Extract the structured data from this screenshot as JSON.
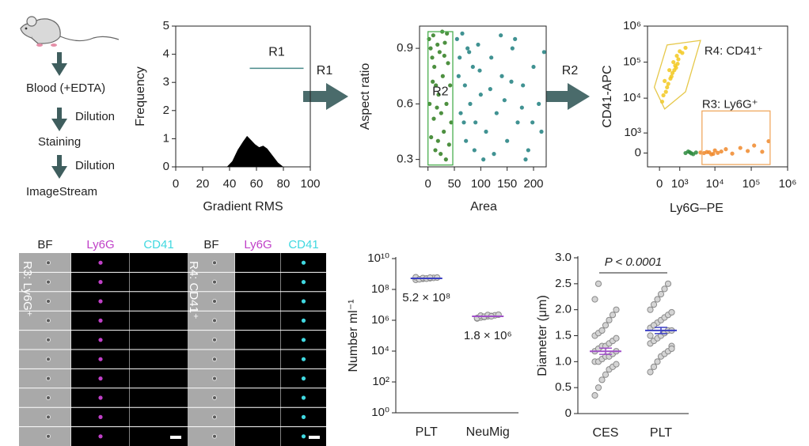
{
  "workflow": {
    "steps": [
      "Blood (+EDTA)",
      "Staining",
      "ImageStream"
    ],
    "arrows": [
      "Dilution",
      "Dilution"
    ]
  },
  "gate_arrows": [
    "R1",
    "R2"
  ],
  "chart_data": [
    {
      "type": "area",
      "xlabel": "Gradient RMS",
      "ylabel": "Frequency",
      "color": "#000000",
      "x": [
        38,
        42,
        46,
        50,
        53,
        56,
        59,
        62,
        65,
        68,
        72,
        76,
        80
      ],
      "y": [
        0,
        0.2,
        0.6,
        0.9,
        1.1,
        0.95,
        0.8,
        0.7,
        0.75,
        0.65,
        0.4,
        0.15,
        0
      ],
      "xlim": [
        0,
        100
      ],
      "xticks": [
        0,
        20,
        40,
        60,
        80,
        100
      ],
      "ylim": [
        0,
        5
      ],
      "yticks": [
        0,
        1,
        2,
        3,
        4,
        5
      ],
      "gates": [
        {
          "name": "R1",
          "x": [
            55,
            95
          ],
          "y": 3.5,
          "color": "#4a8a8a"
        }
      ]
    },
    {
      "type": "scatter",
      "xlabel": "Area",
      "ylabel": "Aspect ratio",
      "series": [
        {
          "color": "#2e7d1e",
          "x": [
            2,
            5,
            8,
            10,
            12,
            15,
            18,
            20,
            22,
            25,
            28,
            30,
            32,
            35,
            38,
            40,
            42,
            44,
            6,
            14,
            24,
            34,
            3,
            11,
            19,
            27,
            36,
            9,
            17,
            31
          ],
          "y": [
            0.95,
            0.9,
            0.85,
            0.97,
            0.8,
            0.7,
            0.92,
            0.65,
            0.88,
            0.55,
            0.75,
            0.45,
            0.93,
            0.6,
            0.82,
            0.38,
            0.7,
            0.5,
            0.42,
            0.35,
            0.33,
            0.3,
            0.6,
            0.52,
            0.4,
            0.99,
            0.98,
            0.72,
            0.58,
            0.86
          ]
        },
        {
          "color": "#1f7f7f",
          "x": [
            55,
            60,
            65,
            70,
            75,
            80,
            85,
            90,
            95,
            100,
            110,
            120,
            130,
            140,
            150,
            160,
            170,
            180,
            190,
            200,
            210,
            215,
            62,
            72,
            88,
            105,
            125,
            145,
            165,
            185,
            58,
            68,
            78,
            98,
            118,
            138,
            158,
            178,
            198,
            220
          ],
          "y": [
            0.95,
            0.85,
            0.98,
            0.7,
            0.9,
            0.6,
            0.8,
            0.5,
            0.92,
            0.65,
            0.45,
            0.85,
            0.55,
            0.75,
            0.4,
            0.9,
            0.5,
            0.7,
            0.35,
            0.8,
            0.6,
            0.45,
            0.55,
            0.4,
            0.35,
            0.3,
            0.33,
            0.62,
            0.95,
            0.3,
            0.75,
            0.5,
            0.88,
            0.78,
            0.68,
            0.97,
            0.72,
            0.58,
            0.5,
            0.88
          ]
        }
      ],
      "xlim": [
        -16,
        224
      ],
      "xticks": [
        0,
        50,
        100,
        150,
        200
      ],
      "ylim": [
        0.26,
        1.02
      ],
      "yticks": [
        0.3,
        0.6,
        0.9
      ],
      "gates": [
        {
          "name": "R2",
          "x": [
            0,
            47
          ],
          "y": [
            0.27,
            0.99
          ],
          "color": "#4caf50"
        }
      ]
    },
    {
      "type": "scatter",
      "xlabel": "Ly6G–PE",
      "ylabel": "CD41-APC",
      "xscale": "biexponential",
      "yscale": "biexponential",
      "series": [
        {
          "color": "#f2c81f",
          "x": [
            200,
            400,
            600,
            800,
            1000,
            300,
            500,
            700,
            900,
            150,
            350,
            550,
            750,
            1200,
            250,
            450,
            650,
            850,
            1500,
            100
          ],
          "y": [
            30000,
            60000,
            100000,
            150000,
            200000,
            20000,
            40000,
            80000,
            120000,
            12000,
            25000,
            50000,
            70000,
            180000,
            15000,
            35000,
            60000,
            90000,
            250000,
            8000
          ]
        },
        {
          "color": "#f0882a",
          "x": [
            4000,
            6000,
            8000,
            10000,
            15000,
            20000,
            30000,
            50000,
            80000,
            120000,
            200000,
            300000,
            5000,
            7000,
            9000,
            12000
          ],
          "y": [
            20,
            40,
            -50,
            100,
            60,
            150,
            -20,
            200,
            80,
            300,
            50,
            500,
            0,
            30,
            -30,
            10
          ]
        },
        {
          "color": "#2e8b3e",
          "x": [
            1500,
            2000,
            2500,
            1800,
            2200,
            3000
          ],
          "y": [
            0,
            30,
            -40,
            60,
            -10,
            20
          ]
        }
      ],
      "xlim": [
        -500,
        1000000
      ],
      "xticks": [
        0,
        {
          "value": 1000,
          "label": "10³"
        },
        {
          "value": 10000,
          "label": "10⁴"
        },
        {
          "value": 100000,
          "label": "10⁵"
        },
        {
          "value": 1000000,
          "label": "10⁶"
        }
      ],
      "ylim": [
        -600,
        1000000
      ],
      "yticks": [
        0,
        {
          "value": 1000,
          "label": "10³"
        },
        {
          "value": 10000,
          "label": "10⁴"
        },
        {
          "value": 100000,
          "label": "10⁵"
        },
        {
          "value": 1000000,
          "label": "10⁶"
        }
      ],
      "gates": [
        {
          "name": "R4: CD41⁺",
          "color": "#e6c84a",
          "points": [
            [
              -200,
              20000
            ],
            [
              300,
              300000
            ],
            [
              4000,
              400000
            ],
            [
              1500,
              15000
            ],
            [
              200,
              5000
            ]
          ]
        },
        {
          "name": "R3: Ly6G⁺",
          "color": "#f0a860",
          "x": [
            4400,
            330000
          ],
          "y": [
            -480,
            4400
          ]
        }
      ]
    },
    {
      "type": "dot",
      "ylabel": "Number ml⁻¹",
      "yscale": "log",
      "categories": [
        "PLT",
        "NeuMig"
      ],
      "points": [
        [
          420000000,
          460000000,
          490000000,
          510000000,
          530000000,
          560000000,
          590000000,
          620000000,
          450000000,
          550000000,
          500000000,
          580000000
        ],
        [
          1300000,
          1500000,
          1600000,
          1800000,
          1900000,
          2100000,
          2300000,
          1400000,
          2000000,
          1700000,
          2200000,
          1800000
        ]
      ],
      "means": [
        520000000,
        1800000
      ],
      "value_labels": [
        "5.2 × 10⁸",
        "1.8 × 10⁶"
      ],
      "mean_colors": [
        "#3b3fc4",
        "#a050c8"
      ],
      "ylim": [
        1,
        10000000000
      ],
      "yticks": [
        {
          "value": 1,
          "label": "10⁰"
        },
        {
          "value": 100,
          "label": "10²"
        },
        {
          "value": 10000,
          "label": "10⁴"
        },
        {
          "value": 1000000,
          "label": "10⁶"
        },
        {
          "value": 100000000,
          "label": "10⁸"
        },
        {
          "value": 10000000000,
          "label": "10¹⁰"
        }
      ]
    },
    {
      "type": "dot",
      "ylabel": "Diameter (μm)",
      "categories": [
        "CES",
        "PLT"
      ],
      "annotation": "P < 0.0001",
      "points": [
        [
          0.35,
          0.5,
          0.65,
          0.75,
          0.85,
          0.9,
          0.95,
          1.0,
          1.0,
          1.05,
          1.1,
          1.1,
          1.15,
          1.2,
          1.2,
          1.25,
          1.3,
          1.3,
          1.35,
          1.4,
          1.45,
          1.5,
          1.55,
          1.6,
          1.7,
          1.8,
          1.9,
          2.0,
          2.2,
          2.5
        ],
        [
          0.8,
          0.9,
          1.0,
          1.1,
          1.15,
          1.2,
          1.3,
          1.35,
          1.4,
          1.45,
          1.5,
          1.55,
          1.6,
          1.6,
          1.65,
          1.7,
          1.75,
          1.8,
          1.85,
          1.9,
          1.95,
          2.0,
          2.1,
          2.2,
          2.3,
          2.4,
          2.5,
          1.25,
          1.5,
          1.7
        ]
      ],
      "means": [
        1.2,
        1.6
      ],
      "errors": [
        0.06,
        0.06
      ],
      "mean_colors": [
        "#a050c8",
        "#3b3fc4"
      ],
      "ylim": [
        0,
        3
      ],
      "yticks": [
        0,
        0.5,
        {
          "value": 1,
          "label": "1.0"
        },
        1.5,
        {
          "value": 2,
          "label": "2.0"
        },
        2.5,
        {
          "value": 3,
          "label": "3.0"
        }
      ]
    }
  ],
  "image_panels": [
    {
      "label": "R3: Ly6G⁺",
      "channels": [
        "BF",
        "Ly6G",
        "CD41"
      ],
      "channel_colors": [
        "#222222",
        "#c040c8",
        "#40d8e0"
      ]
    },
    {
      "label": "R4: CD41⁺",
      "channels": [
        "BF",
        "Ly6G",
        "CD41"
      ],
      "channel_colors": [
        "#222222",
        "#c040c8",
        "#40d8e0"
      ]
    }
  ]
}
